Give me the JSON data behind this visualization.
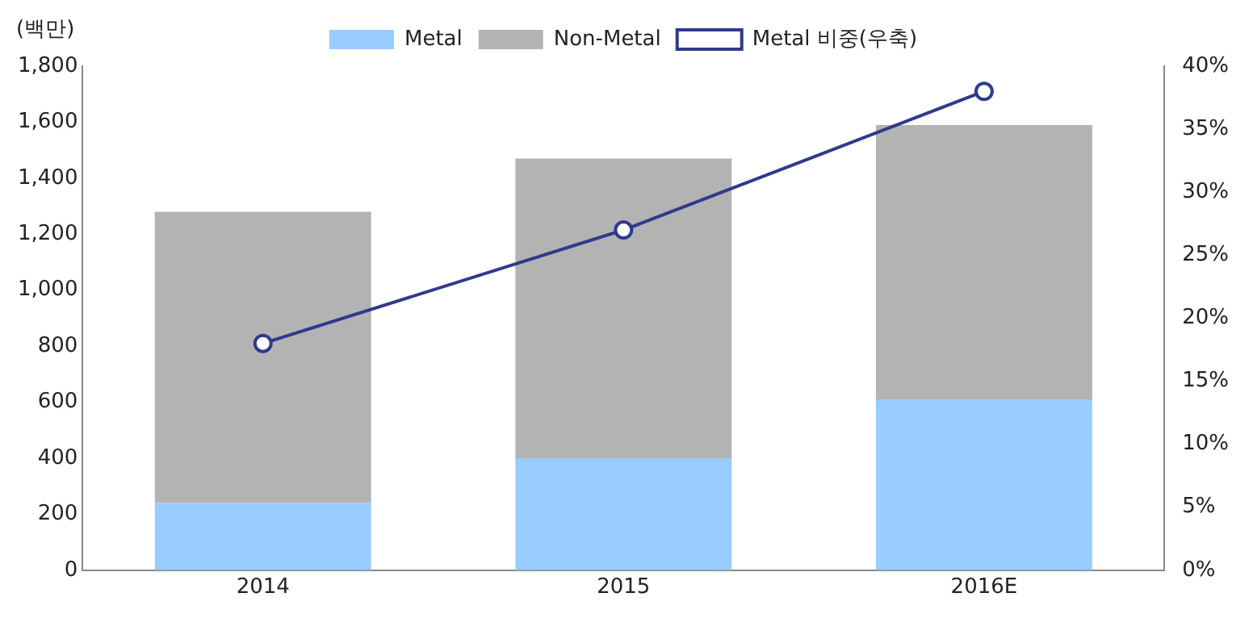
{
  "chart_data": {
    "type": "bar",
    "ylabel": "(백만)",
    "categories": [
      "2014",
      "2015",
      "2016E"
    ],
    "stacked": true,
    "series": [
      {
        "name": "Metal",
        "color": "#99ccff",
        "values": [
          240,
          400,
          610
        ]
      },
      {
        "name": "Non-Metal",
        "color": "#b3b3b3",
        "values": [
          1040,
          1070,
          980
        ]
      },
      {
        "name": "Metal 비중(우축)",
        "type": "line",
        "axis": "y2",
        "color": "#2e3a8c",
        "values": [
          18,
          27,
          38
        ]
      }
    ],
    "ylim": [
      0,
      1800
    ],
    "yticks": [
      0,
      {
        "value": 200,
        "label": "200"
      },
      {
        "value": 400,
        "label": "400"
      },
      {
        "value": 600,
        "label": "600"
      },
      {
        "value": 800,
        "label": "800"
      },
      {
        "value": 1000,
        "label": "1,000"
      },
      {
        "value": 1200,
        "label": "1,200"
      },
      {
        "value": 1400,
        "label": "1,400"
      },
      {
        "value": 1600,
        "label": "1,600"
      },
      {
        "value": 1800,
        "label": "1,800"
      }
    ],
    "y2lim": [
      0,
      40
    ],
    "y2ticks": [
      {
        "value": 0,
        "label": "0%"
      },
      {
        "value": 5,
        "label": "5%"
      },
      {
        "value": 10,
        "label": "10%"
      },
      {
        "value": 15,
        "label": "15%"
      },
      {
        "value": 20,
        "label": "20%"
      },
      {
        "value": 25,
        "label": "25%"
      },
      {
        "value": 30,
        "label": "30%"
      },
      {
        "value": 35,
        "label": "35%"
      },
      {
        "value": 40,
        "label": "40%"
      }
    ],
    "marker": "circle",
    "line_style": "solid",
    "grid": false,
    "legend": "top"
  }
}
